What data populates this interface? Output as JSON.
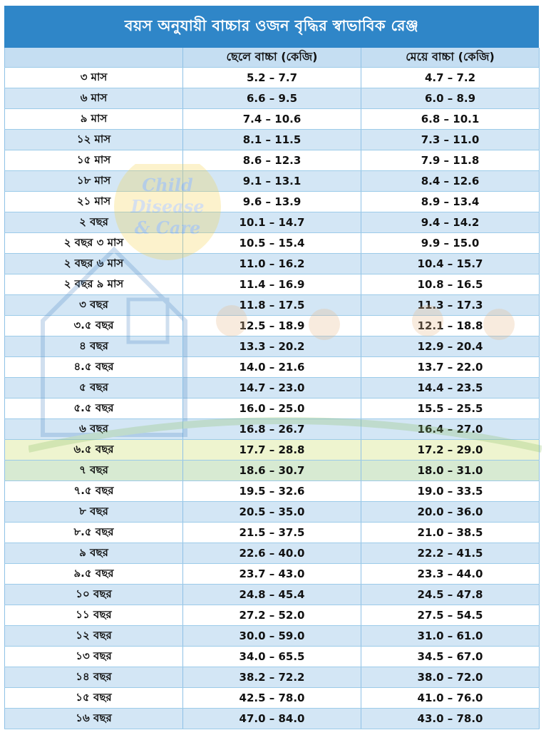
{
  "title": "বয়স অনুযায়ী বাচ্চার ওজন বৃদ্ধির স্বাভাবিক রেঞ্জ",
  "columns": [
    "",
    "ছেলে বাচ্চা (কেজি)",
    "মেয়ে বাচ্চা (কেজি)"
  ],
  "watermark": {
    "line1": "Child",
    "line2": "Disease",
    "line3": "& Care"
  },
  "rows": [
    {
      "age": "৩ মাস",
      "boy": "5.2 – 7.7",
      "girl": "4.7 – 7.2"
    },
    {
      "age": "৬ মাস",
      "boy": "6.6 – 9.5",
      "girl": "6.0 – 8.9"
    },
    {
      "age": "৯ মাস",
      "boy": "7.4 – 10.6",
      "girl": "6.8 – 10.1"
    },
    {
      "age": "১২ মাস",
      "boy": "8.1 – 11.5",
      "girl": "7.3 – 11.0"
    },
    {
      "age": "১৫ মাস",
      "boy": "8.6 – 12.3",
      "girl": "7.9 – 11.8"
    },
    {
      "age": "১৮ মাস",
      "boy": "9.1 – 13.1",
      "girl": "8.4 – 12.6"
    },
    {
      "age": "২১ মাস",
      "boy": "9.6 – 13.9",
      "girl": "8.9 – 13.4"
    },
    {
      "age": "২ বছর",
      "boy": "10.1 – 14.7",
      "girl": "9.4 – 14.2"
    },
    {
      "age": "২ বছর ৩ মাস",
      "boy": "10.5 – 15.4",
      "girl": "9.9 – 15.0"
    },
    {
      "age": "২ বছর ৬ মাস",
      "boy": "11.0 – 16.2",
      "girl": "10.4 – 15.7"
    },
    {
      "age": "২ বছর ৯ মাস",
      "boy": "11.4 – 16.9",
      "girl": "10.8 – 16.5"
    },
    {
      "age": "৩ বছর",
      "boy": "11.8 – 17.5",
      "girl": "11.3 – 17.3"
    },
    {
      "age": "৩.৫ বছর",
      "boy": "12.5 – 18.9",
      "girl": "12.1 – 18.8"
    },
    {
      "age": "৪ বছর",
      "boy": "13.3 – 20.2",
      "girl": "12.9 – 20.4"
    },
    {
      "age": "৪.৫ বছর",
      "boy": "14.0 – 21.6",
      "girl": "13.7 – 22.0"
    },
    {
      "age": "৫ বছর",
      "boy": "14.7 – 23.0",
      "girl": "14.4 – 23.5"
    },
    {
      "age": "৫.৫ বছর",
      "boy": "16.0 – 25.0",
      "girl": "15.5 – 25.5"
    },
    {
      "age": "৬ বছর",
      "boy": "16.8 – 26.7",
      "girl": "16.4 – 27.0"
    },
    {
      "age": "৬.৫ বছর",
      "boy": "17.7 – 28.8",
      "girl": "17.2 – 29.0"
    },
    {
      "age": "৭ বছর",
      "boy": "18.6 – 30.7",
      "girl": "18.0 – 31.0"
    },
    {
      "age": "৭.৫ বছর",
      "boy": "19.5 – 32.6",
      "girl": "19.0 – 33.5"
    },
    {
      "age": "৮ বছর",
      "boy": "20.5 – 35.0",
      "girl": "20.0 – 36.0"
    },
    {
      "age": "৮.৫ বছর",
      "boy": "21.5 – 37.5",
      "girl": "21.0 – 38.5"
    },
    {
      "age": "৯ বছর",
      "boy": "22.6 – 40.0",
      "girl": "22.2 – 41.5"
    },
    {
      "age": "৯.৫ বছর",
      "boy": "23.7 – 43.0",
      "girl": "23.3 – 44.0"
    },
    {
      "age": "১০ বছর",
      "boy": "24.8 – 45.4",
      "girl": "24.5 – 47.8"
    },
    {
      "age": "১১ বছর",
      "boy": "27.2 – 52.0",
      "girl": "27.5 – 54.5"
    },
    {
      "age": "১২ বছর",
      "boy": "30.0 – 59.0",
      "girl": "31.0 – 61.0"
    },
    {
      "age": "১৩ বছর",
      "boy": "34.0 – 65.5",
      "girl": "34.5 – 67.0"
    },
    {
      "age": "১৪ বছর",
      "boy": "38.2 – 72.2",
      "girl": "38.0 – 72.0"
    },
    {
      "age": "১৫ বছর",
      "boy": "42.5 – 78.0",
      "girl": "41.0 – 76.0"
    },
    {
      "age": "১৬ বছর",
      "boy": "47.0 – 84.0",
      "girl": "43.0 – 78.0"
    }
  ],
  "colors": {
    "title_bg": "#2f86c8",
    "row_alt": "#d3e6f5",
    "row_highlight_yellow": "#eef4cf",
    "row_highlight_green": "#d7ead2"
  }
}
